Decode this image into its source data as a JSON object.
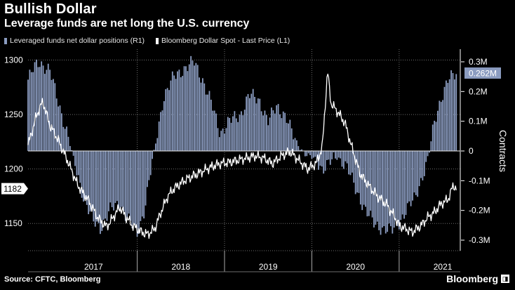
{
  "header": {
    "title": "Bullish Dollar",
    "subtitle": "Leverage funds are net long the U.S. currency"
  },
  "legend": {
    "items": [
      {
        "label": "Leveraged funds net dollar positions (R1)",
        "color": "#8b9cc0"
      },
      {
        "label": "Bloomberg Dollar Spot - Last Price (L1)",
        "color": "#ffffff"
      }
    ]
  },
  "footer": {
    "source": "Source: CFTC, Bloomberg",
    "brand": "Bloomberg"
  },
  "chart_data": {
    "type": "bar+line",
    "title": "Bullish Dollar",
    "ylabel_right": "Contracts",
    "ylim_left": [
      1125,
      1310
    ],
    "ylim_right": [
      -300000,
      300000
    ],
    "left_ticks": [
      {
        "value": 1150,
        "label": "1150"
      },
      {
        "value": 1200,
        "label": "1200"
      },
      {
        "value": 1250,
        "label": "1250"
      },
      {
        "value": 1300,
        "label": "1300"
      }
    ],
    "right_ticks": [
      {
        "value": 300000,
        "label": "0.3M"
      },
      {
        "value": 200000,
        "label": "0.2M"
      },
      {
        "value": 100000,
        "label": "0.1M"
      },
      {
        "value": 0,
        "label": "0"
      },
      {
        "value": -100000,
        "label": "-0.1M"
      },
      {
        "value": -200000,
        "label": "-0.2M"
      },
      {
        "value": -300000,
        "label": "-0.3M"
      }
    ],
    "x_range": [
      2016.75,
      2021.7
    ],
    "year_labels": [
      {
        "x": 2017.5,
        "label": "2017"
      },
      {
        "x": 2018.5,
        "label": "2018"
      },
      {
        "x": 2019.5,
        "label": "2019"
      },
      {
        "x": 2020.5,
        "label": "2020"
      },
      {
        "x": 2021.5,
        "label": "2021"
      }
    ],
    "year_boundaries": [
      2018.0,
      2019.0,
      2020.0,
      2021.0
    ],
    "last_left_value": {
      "value": 1182,
      "label": "1182"
    },
    "last_right_value": {
      "value": 262000,
      "label": "0.262M"
    },
    "series": [
      {
        "name": "Leveraged funds net dollar positions (R1)",
        "axis": "right",
        "color": "#8b9cc0",
        "weekly_from": 2016.75,
        "anchors": [
          [
            2016.75,
            240000
          ],
          [
            2016.82,
            280000
          ],
          [
            2016.88,
            300000
          ],
          [
            2017.0,
            270000
          ],
          [
            2017.08,
            180000
          ],
          [
            2017.2,
            60000
          ],
          [
            2017.28,
            -40000
          ],
          [
            2017.38,
            -150000
          ],
          [
            2017.5,
            -240000
          ],
          [
            2017.58,
            -260000
          ],
          [
            2017.68,
            -200000
          ],
          [
            2017.8,
            -180000
          ],
          [
            2017.92,
            -240000
          ],
          [
            2018.0,
            -280000
          ],
          [
            2018.08,
            -200000
          ],
          [
            2018.16,
            -60000
          ],
          [
            2018.22,
            40000
          ],
          [
            2018.3,
            180000
          ],
          [
            2018.42,
            250000
          ],
          [
            2018.55,
            280000
          ],
          [
            2018.65,
            300000
          ],
          [
            2018.75,
            240000
          ],
          [
            2018.85,
            160000
          ],
          [
            2018.95,
            60000
          ],
          [
            2019.05,
            100000
          ],
          [
            2019.18,
            120000
          ],
          [
            2019.28,
            190000
          ],
          [
            2019.4,
            170000
          ],
          [
            2019.5,
            100000
          ],
          [
            2019.6,
            150000
          ],
          [
            2019.7,
            120000
          ],
          [
            2019.8,
            40000
          ],
          [
            2019.92,
            -10000
          ],
          [
            2020.05,
            -30000
          ],
          [
            2020.12,
            -60000
          ],
          [
            2020.2,
            -40000
          ],
          [
            2020.3,
            -20000
          ],
          [
            2020.4,
            -50000
          ],
          [
            2020.5,
            -130000
          ],
          [
            2020.62,
            -200000
          ],
          [
            2020.72,
            -250000
          ],
          [
            2020.82,
            -260000
          ],
          [
            2020.92,
            -270000
          ],
          [
            2021.0,
            -240000
          ],
          [
            2021.08,
            -200000
          ],
          [
            2021.18,
            -160000
          ],
          [
            2021.26,
            -90000
          ],
          [
            2021.33,
            -30000
          ],
          [
            2021.4,
            90000
          ],
          [
            2021.48,
            180000
          ],
          [
            2021.56,
            240000
          ],
          [
            2021.62,
            250000
          ],
          [
            2021.66,
            262000
          ]
        ]
      },
      {
        "name": "Bloomberg Dollar Spot - Last Price (L1)",
        "axis": "left",
        "color": "#ffffff",
        "weekly_from": 2016.75,
        "anchors": [
          [
            2016.75,
            1222
          ],
          [
            2016.85,
            1250
          ],
          [
            2016.92,
            1262
          ],
          [
            2017.0,
            1240
          ],
          [
            2017.06,
            1232
          ],
          [
            2017.12,
            1222
          ],
          [
            2017.2,
            1208
          ],
          [
            2017.32,
            1185
          ],
          [
            2017.45,
            1170
          ],
          [
            2017.55,
            1155
          ],
          [
            2017.65,
            1147
          ],
          [
            2017.72,
            1155
          ],
          [
            2017.8,
            1165
          ],
          [
            2017.88,
            1155
          ],
          [
            2017.95,
            1148
          ],
          [
            2018.05,
            1142
          ],
          [
            2018.12,
            1140
          ],
          [
            2018.2,
            1145
          ],
          [
            2018.28,
            1162
          ],
          [
            2018.35,
            1175
          ],
          [
            2018.42,
            1182
          ],
          [
            2018.55,
            1190
          ],
          [
            2018.65,
            1194
          ],
          [
            2018.75,
            1198
          ],
          [
            2018.85,
            1202
          ],
          [
            2018.95,
            1205
          ],
          [
            2019.05,
            1206
          ],
          [
            2019.15,
            1208
          ],
          [
            2019.25,
            1210
          ],
          [
            2019.35,
            1212
          ],
          [
            2019.45,
            1210
          ],
          [
            2019.55,
            1205
          ],
          [
            2019.65,
            1212
          ],
          [
            2019.75,
            1216
          ],
          [
            2019.85,
            1208
          ],
          [
            2019.95,
            1200
          ],
          [
            2020.05,
            1205
          ],
          [
            2020.12,
            1220
          ],
          [
            2020.18,
            1290
          ],
          [
            2020.22,
            1260
          ],
          [
            2020.3,
            1252
          ],
          [
            2020.38,
            1242
          ],
          [
            2020.45,
            1222
          ],
          [
            2020.55,
            1196
          ],
          [
            2020.65,
            1185
          ],
          [
            2020.75,
            1175
          ],
          [
            2020.85,
            1168
          ],
          [
            2020.95,
            1156
          ],
          [
            2021.0,
            1148
          ],
          [
            2021.08,
            1145
          ],
          [
            2021.15,
            1142
          ],
          [
            2021.25,
            1148
          ],
          [
            2021.32,
            1155
          ],
          [
            2021.4,
            1160
          ],
          [
            2021.48,
            1168
          ],
          [
            2021.56,
            1172
          ],
          [
            2021.62,
            1185
          ],
          [
            2021.66,
            1182
          ]
        ]
      }
    ]
  }
}
